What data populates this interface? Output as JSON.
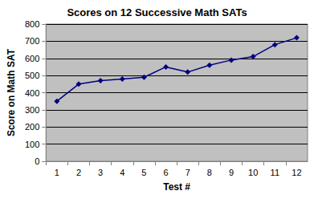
{
  "chart_data": {
    "type": "line",
    "title": "Scores on 12 Successive Math SATs",
    "xlabel": "Test #",
    "ylabel": "Score on Math SAT",
    "categories": [
      "1",
      "2",
      "3",
      "4",
      "5",
      "6",
      "7",
      "8",
      "9",
      "10",
      "11",
      "12"
    ],
    "values": [
      350,
      450,
      470,
      480,
      490,
      550,
      520,
      560,
      590,
      610,
      680,
      720
    ],
    "color": "#000080",
    "marker": "diamond",
    "line_style": "solid",
    "ylim": [
      0,
      800
    ],
    "yticks": [
      0,
      100,
      200,
      300,
      400,
      500,
      600,
      700,
      800
    ],
    "grid": true
  }
}
